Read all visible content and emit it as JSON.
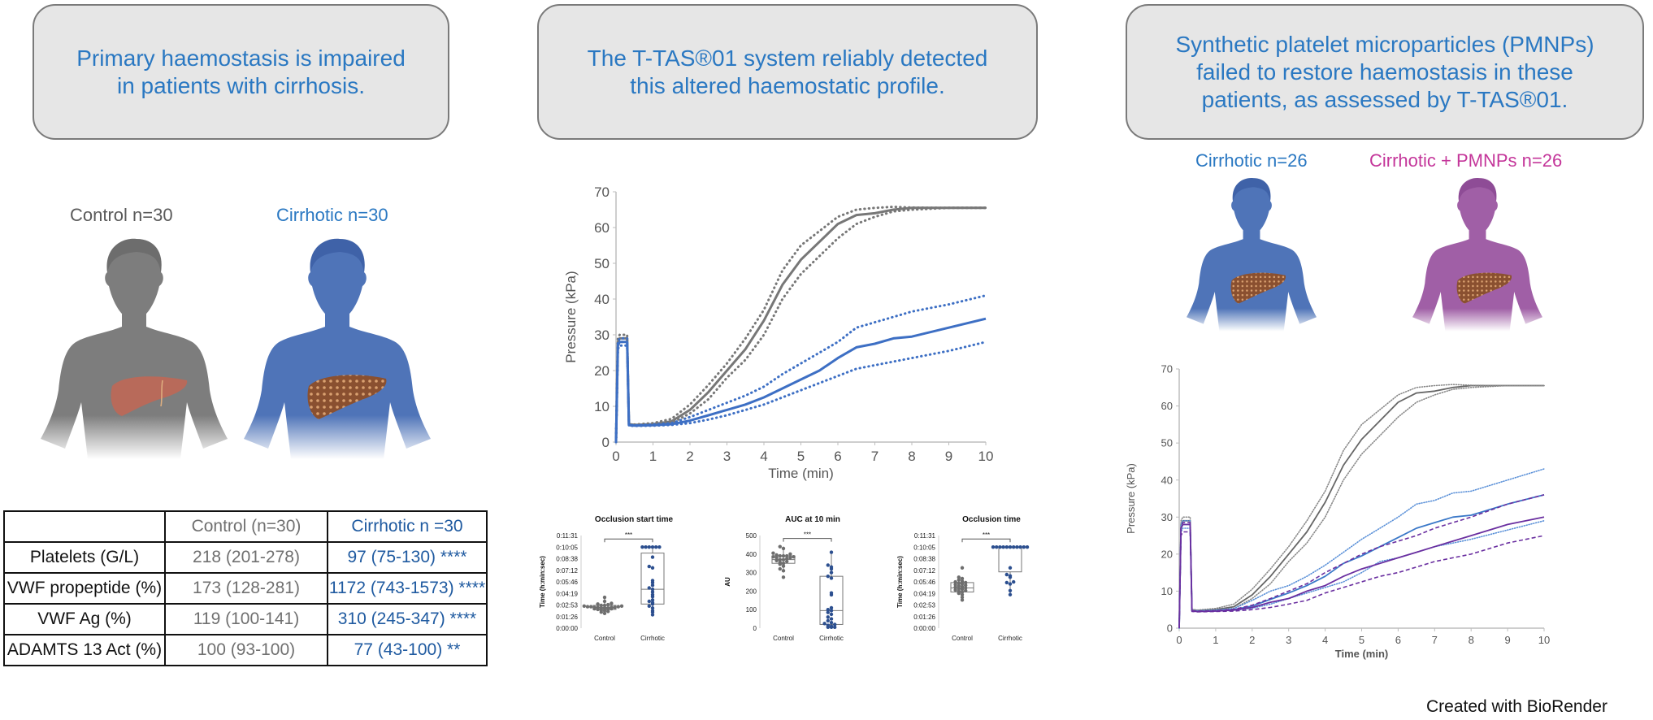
{
  "panels": [
    {
      "title_lines": [
        "Primary haemostasis is impaired",
        "in patients with cirrhosis."
      ]
    },
    {
      "title_lines": [
        "The T-TAS®01 system reliably detected",
        "this altered haemostatic profile."
      ]
    },
    {
      "title_lines": [
        "Synthetic platelet microparticles (PMNPs)",
        "failed to restore haemostasis in these",
        "patients, as assessed by T-TAS®01."
      ]
    }
  ],
  "groups": {
    "control": "Control n=30",
    "cirrhotic": "Cirrhotic n=30",
    "cirrhotic26": "Cirrhotic n=26",
    "pmnp26": "Cirrhotic + PMNPs  n=26"
  },
  "colors": {
    "control": "#777777",
    "cirrhotic": "#4a72b8",
    "pmnp": "#a35ca8",
    "title_blue": "#2a78c2",
    "purple_line": "#6a2fa0"
  },
  "table": {
    "headers": [
      "",
      "Control (n=30)",
      "Cirrhotic n =30"
    ],
    "rows": [
      [
        "Platelets (G/L)",
        "218 (201-278)",
        "97 (75-130) ****"
      ],
      [
        "VWF propeptide (%)",
        "173 (128-281)",
        "1172 (743-1573) ****"
      ],
      [
        "VWF Ag (%)",
        "119 (100-141)",
        "310 (245-347) ****"
      ],
      [
        "ADAMTS 13 Act (%)",
        "100 (93-100)",
        "77 (43-100) **"
      ]
    ]
  },
  "credit": "Created with BioRender",
  "chart_data": [
    {
      "type": "line",
      "id": "ttas-main",
      "xlabel": "Time (min)",
      "ylabel": "Pressure (kPa)",
      "xlim": [
        0,
        10
      ],
      "ylim": [
        0,
        70
      ],
      "xticks": [
        "0",
        "1",
        "2",
        "3",
        "4",
        "5",
        "6",
        "7",
        "8",
        "9",
        "10"
      ],
      "yticks": [
        "0",
        "10",
        "20",
        "30",
        "40",
        "50",
        "60",
        "70"
      ],
      "x": [
        0,
        0.05,
        0.1,
        0.3,
        0.35,
        0.5,
        1,
        1.5,
        2,
        2.5,
        3,
        3.5,
        4,
        4.5,
        5,
        5.5,
        6,
        6.5,
        7,
        7.5,
        8,
        9,
        10
      ],
      "series": [
        {
          "name": "Control mean",
          "style": "solid",
          "color": "#777777",
          "values": [
            0,
            28,
            29,
            29,
            5,
            4.8,
            5,
            5.8,
            9,
            14,
            20,
            26,
            34,
            44,
            51,
            56,
            61,
            63.5,
            64,
            65,
            65.5,
            65.5,
            65.5
          ]
        },
        {
          "name": "Control upper",
          "style": "dotted",
          "color": "#777777",
          "values": [
            0,
            29,
            30,
            30,
            5,
            4.9,
            5.3,
            6.5,
            10.5,
            16,
            22,
            29,
            37,
            48,
            55,
            59,
            63,
            65,
            65.5,
            65.8,
            65.6,
            65.5,
            65.5
          ]
        },
        {
          "name": "Control lower",
          "style": "dotted",
          "color": "#777777",
          "values": [
            0,
            27,
            28,
            28,
            4.8,
            4.7,
            4.8,
            5.3,
            8,
            12,
            18,
            23,
            30,
            40,
            47,
            52,
            57,
            61,
            63,
            64.5,
            65,
            65.5,
            65.5
          ]
        },
        {
          "name": "Cirrhotic mean",
          "style": "solid",
          "color": "#3d6fc4",
          "values": [
            0,
            27,
            28,
            28,
            4.7,
            4.6,
            4.7,
            5,
            6,
            7.5,
            9,
            10.5,
            12.5,
            15,
            17.5,
            20,
            23.5,
            26.5,
            27.5,
            29,
            29.5,
            32,
            34.5
          ]
        },
        {
          "name": "Cirrhotic upper",
          "style": "dotted",
          "color": "#3d6fc4",
          "values": [
            0,
            28,
            29,
            29,
            4.8,
            4.7,
            4.9,
            5.3,
            7,
            9,
            11,
            13,
            15.5,
            19,
            22,
            25,
            28,
            32,
            33.5,
            35,
            36.5,
            38.5,
            41
          ]
        },
        {
          "name": "Cirrhotic lower",
          "style": "dotted",
          "color": "#3d6fc4",
          "values": [
            0,
            26,
            27,
            27,
            4.6,
            4.5,
            4.6,
            4.8,
            5.3,
            6.3,
            7.5,
            9,
            10.5,
            12.5,
            14.5,
            16.5,
            18.5,
            20.5,
            21.5,
            22.5,
            23.5,
            25.5,
            28
          ]
        }
      ]
    },
    {
      "type": "scatter",
      "id": "occlusion-start",
      "title": "Occlusion start time",
      "ylabel": "Time (h:min:sec)",
      "categories": [
        "Control",
        "Cirrhotic"
      ],
      "yticks": [
        "0:00:00",
        "0:01:26",
        "0:02:53",
        "0:04:19",
        "0:05:46",
        "0:07:12",
        "0:08:38",
        "0:10:05",
        "0:11:31"
      ],
      "ylim": [
        0,
        691
      ],
      "significance": "***",
      "box": [
        {
          "q1": 140,
          "median": 155,
          "q3": 170,
          "min": 110,
          "max": 230
        },
        {
          "q1": 180,
          "median": 290,
          "q3": 560,
          "min": 100,
          "max": 605
        }
      ],
      "points": [
        [
          110,
          120,
          125,
          130,
          135,
          140,
          140,
          145,
          145,
          150,
          150,
          150,
          155,
          155,
          155,
          155,
          160,
          160,
          160,
          165,
          165,
          170,
          170,
          175,
          180,
          185,
          200,
          230
        ],
        [
          100,
          120,
          130,
          150,
          165,
          180,
          190,
          200,
          210,
          235,
          250,
          270,
          290,
          300,
          320,
          340,
          355,
          450,
          460,
          530,
          605,
          605,
          605,
          605,
          605,
          605
        ]
      ]
    },
    {
      "type": "scatter",
      "id": "auc-10min",
      "title": "AUC at 10 min",
      "ylabel": "AU",
      "categories": [
        "Control",
        "Cirrhotic"
      ],
      "yticks": [
        "0",
        "100",
        "200",
        "300",
        "400",
        "500"
      ],
      "ylim": [
        0,
        500
      ],
      "significance": "***",
      "box": [
        {
          "q1": 350,
          "median": 370,
          "q3": 390,
          "min": 310,
          "max": 440
        },
        {
          "q1": 20,
          "median": 95,
          "q3": 280,
          "min": 5,
          "max": 410
        }
      ],
      "points": [
        [
          275,
          310,
          320,
          335,
          345,
          350,
          355,
          360,
          365,
          370,
          370,
          375,
          380,
          380,
          385,
          385,
          390,
          390,
          390,
          395,
          400,
          405,
          430,
          440
        ],
        [
          5,
          5,
          5,
          10,
          15,
          20,
          25,
          30,
          40,
          50,
          60,
          75,
          85,
          95,
          100,
          110,
          180,
          190,
          270,
          280,
          300,
          320,
          330,
          340,
          410
        ]
      ]
    },
    {
      "type": "scatter",
      "id": "occlusion-time",
      "title": "Occlusion time",
      "ylabel": "Time (h:min:sec)",
      "categories": [
        "Control",
        "Cirrhotic"
      ],
      "yticks": [
        "0:00:00",
        "0:01:26",
        "0:02:53",
        "0:04:19",
        "0:05:46",
        "0:07:12",
        "0:08:38",
        "0:10:05",
        "0:11:31"
      ],
      "ylim": [
        0,
        691
      ],
      "significance": "***",
      "box": [
        {
          "q1": 270,
          "median": 300,
          "q3": 340,
          "min": 210,
          "max": 380
        },
        {
          "q1": 420,
          "median": 600,
          "q3": 605,
          "min": 250,
          "max": 605
        }
      ],
      "points": [
        [
          210,
          230,
          250,
          260,
          270,
          275,
          280,
          285,
          290,
          295,
          300,
          305,
          310,
          315,
          320,
          325,
          330,
          335,
          340,
          345,
          350,
          360,
          370,
          380,
          450
        ],
        [
          250,
          280,
          330,
          340,
          345,
          380,
          390,
          400,
          450,
          605,
          605,
          605,
          605,
          605,
          605,
          605,
          605,
          605,
          605,
          605
        ]
      ]
    },
    {
      "type": "line",
      "id": "ttas-pmnp",
      "xlabel": "Time (min)",
      "ylabel": "Pressure (kPa)",
      "xlim": [
        0,
        10
      ],
      "ylim": [
        0,
        70
      ],
      "xticks": [
        "0",
        "1",
        "2",
        "3",
        "4",
        "5",
        "6",
        "7",
        "8",
        "9",
        "10"
      ],
      "yticks": [
        "0",
        "10",
        "20",
        "30",
        "40",
        "50",
        "60",
        "70"
      ],
      "x": [
        0,
        0.05,
        0.1,
        0.3,
        0.35,
        0.5,
        1,
        1.5,
        2,
        2.5,
        3,
        3.5,
        4,
        4.5,
        5,
        5.5,
        6,
        6.5,
        7,
        7.5,
        8,
        9,
        10
      ],
      "series": [
        {
          "name": "Control mean",
          "style": "solid",
          "color": "#666666",
          "values": [
            0,
            28,
            29,
            29,
            5,
            4.8,
            5,
            5.8,
            9,
            14,
            20,
            26,
            34,
            44,
            51,
            56,
            61,
            63.5,
            64,
            65,
            65.5,
            65.5,
            65.5
          ]
        },
        {
          "name": "Control upper",
          "style": "dotted",
          "color": "#888888",
          "values": [
            0,
            29,
            30,
            30,
            5,
            4.9,
            5.3,
            6.5,
            10.5,
            16,
            22,
            29,
            37,
            48,
            55,
            59,
            63,
            65,
            65.5,
            65.8,
            65.6,
            65.5,
            65.5
          ]
        },
        {
          "name": "Control lower",
          "style": "dotted",
          "color": "#888888",
          "values": [
            0,
            27,
            28,
            28,
            4.8,
            4.7,
            4.8,
            5.3,
            8,
            12,
            18,
            23,
            30,
            40,
            47,
            52,
            57,
            61,
            63,
            64.5,
            65,
            65.5,
            65.5
          ]
        },
        {
          "name": "Cirrhotic mean",
          "style": "solid",
          "color": "#3a78c8",
          "values": [
            0,
            27,
            28,
            28,
            4.7,
            4.6,
            4.7,
            5,
            6,
            7.8,
            9.5,
            11.5,
            14,
            17.5,
            19.5,
            22,
            24.5,
            27,
            28.5,
            30,
            30.5,
            33.5,
            36
          ]
        },
        {
          "name": "Cirrhotic upper",
          "style": "dotted",
          "color": "#5a90d8",
          "values": [
            0,
            28,
            29,
            29,
            4.8,
            4.7,
            4.9,
            5.3,
            7.5,
            10,
            11.5,
            14,
            17,
            20.5,
            24,
            27,
            30,
            33.5,
            34.5,
            36.5,
            37,
            40,
            43
          ]
        },
        {
          "name": "Cirrhotic lower",
          "style": "dotted",
          "color": "#5a90d8",
          "values": [
            0,
            26,
            27,
            27,
            4.6,
            4.5,
            4.6,
            4.8,
            5.4,
            6.5,
            8,
            9.5,
            11,
            12.5,
            15,
            18,
            19,
            20.5,
            22,
            23,
            24,
            26.5,
            29
          ]
        },
        {
          "name": "Cirrhotic + PMNPs mean",
          "style": "solid",
          "color": "#6a2fa0",
          "values": [
            0,
            27,
            28,
            28,
            4.6,
            4.5,
            4.6,
            4.9,
            5.6,
            7,
            8,
            10,
            11.5,
            14,
            16,
            17.5,
            19,
            20.5,
            22,
            23.5,
            25,
            28,
            30
          ]
        },
        {
          "name": "Cirrhotic + PMNPs upper",
          "style": "dashed",
          "color": "#6a2fa0",
          "values": [
            0,
            27,
            28.5,
            28.5,
            4.7,
            4.6,
            4.7,
            5.1,
            6.2,
            8,
            10,
            12,
            15,
            17.5,
            20,
            22,
            23.5,
            25,
            27,
            28.5,
            30,
            33.5,
            36
          ]
        },
        {
          "name": "Cirrhotic + PMNPs lower",
          "style": "dashed",
          "color": "#6a2fa0",
          "values": [
            0,
            25,
            26,
            26,
            4.5,
            4.4,
            4.5,
            4.6,
            5,
            5.6,
            6.5,
            7.5,
            9.5,
            11,
            12.5,
            14,
            15,
            16.5,
            18,
            19,
            20,
            23,
            25
          ]
        }
      ]
    }
  ]
}
